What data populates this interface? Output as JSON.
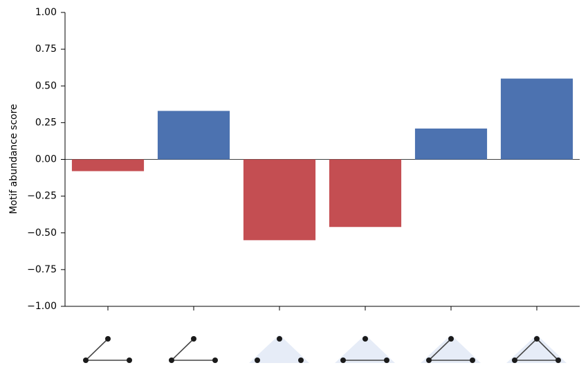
{
  "chart_data": {
    "type": "bar",
    "y_label": "Motif abundance score",
    "categories": [
      null,
      null,
      null,
      null,
      null,
      null
    ],
    "values": [
      -0.08,
      0.33,
      -0.55,
      -0.46,
      0.21,
      0.55
    ],
    "colors": [
      "#c44e52",
      "#4c72b0",
      "#c44e52",
      "#c44e52",
      "#4c72b0",
      "#4c72b0"
    ],
    "ylim": [
      -1,
      1
    ],
    "yticks": [
      {
        "value": -1,
        "label": "−1.00"
      },
      {
        "value": -0.75,
        "label": "−0.75"
      },
      {
        "value": -0.5,
        "label": "−0.50"
      },
      {
        "value": -0.25,
        "label": "−0.25"
      },
      {
        "value": 0,
        "label": "0.00"
      },
      0.25,
      {
        "value": 0.5,
        "label": "0.50"
      },
      0.75,
      {
        "value": 1,
        "label": "1.00"
      }
    ]
  }
}
